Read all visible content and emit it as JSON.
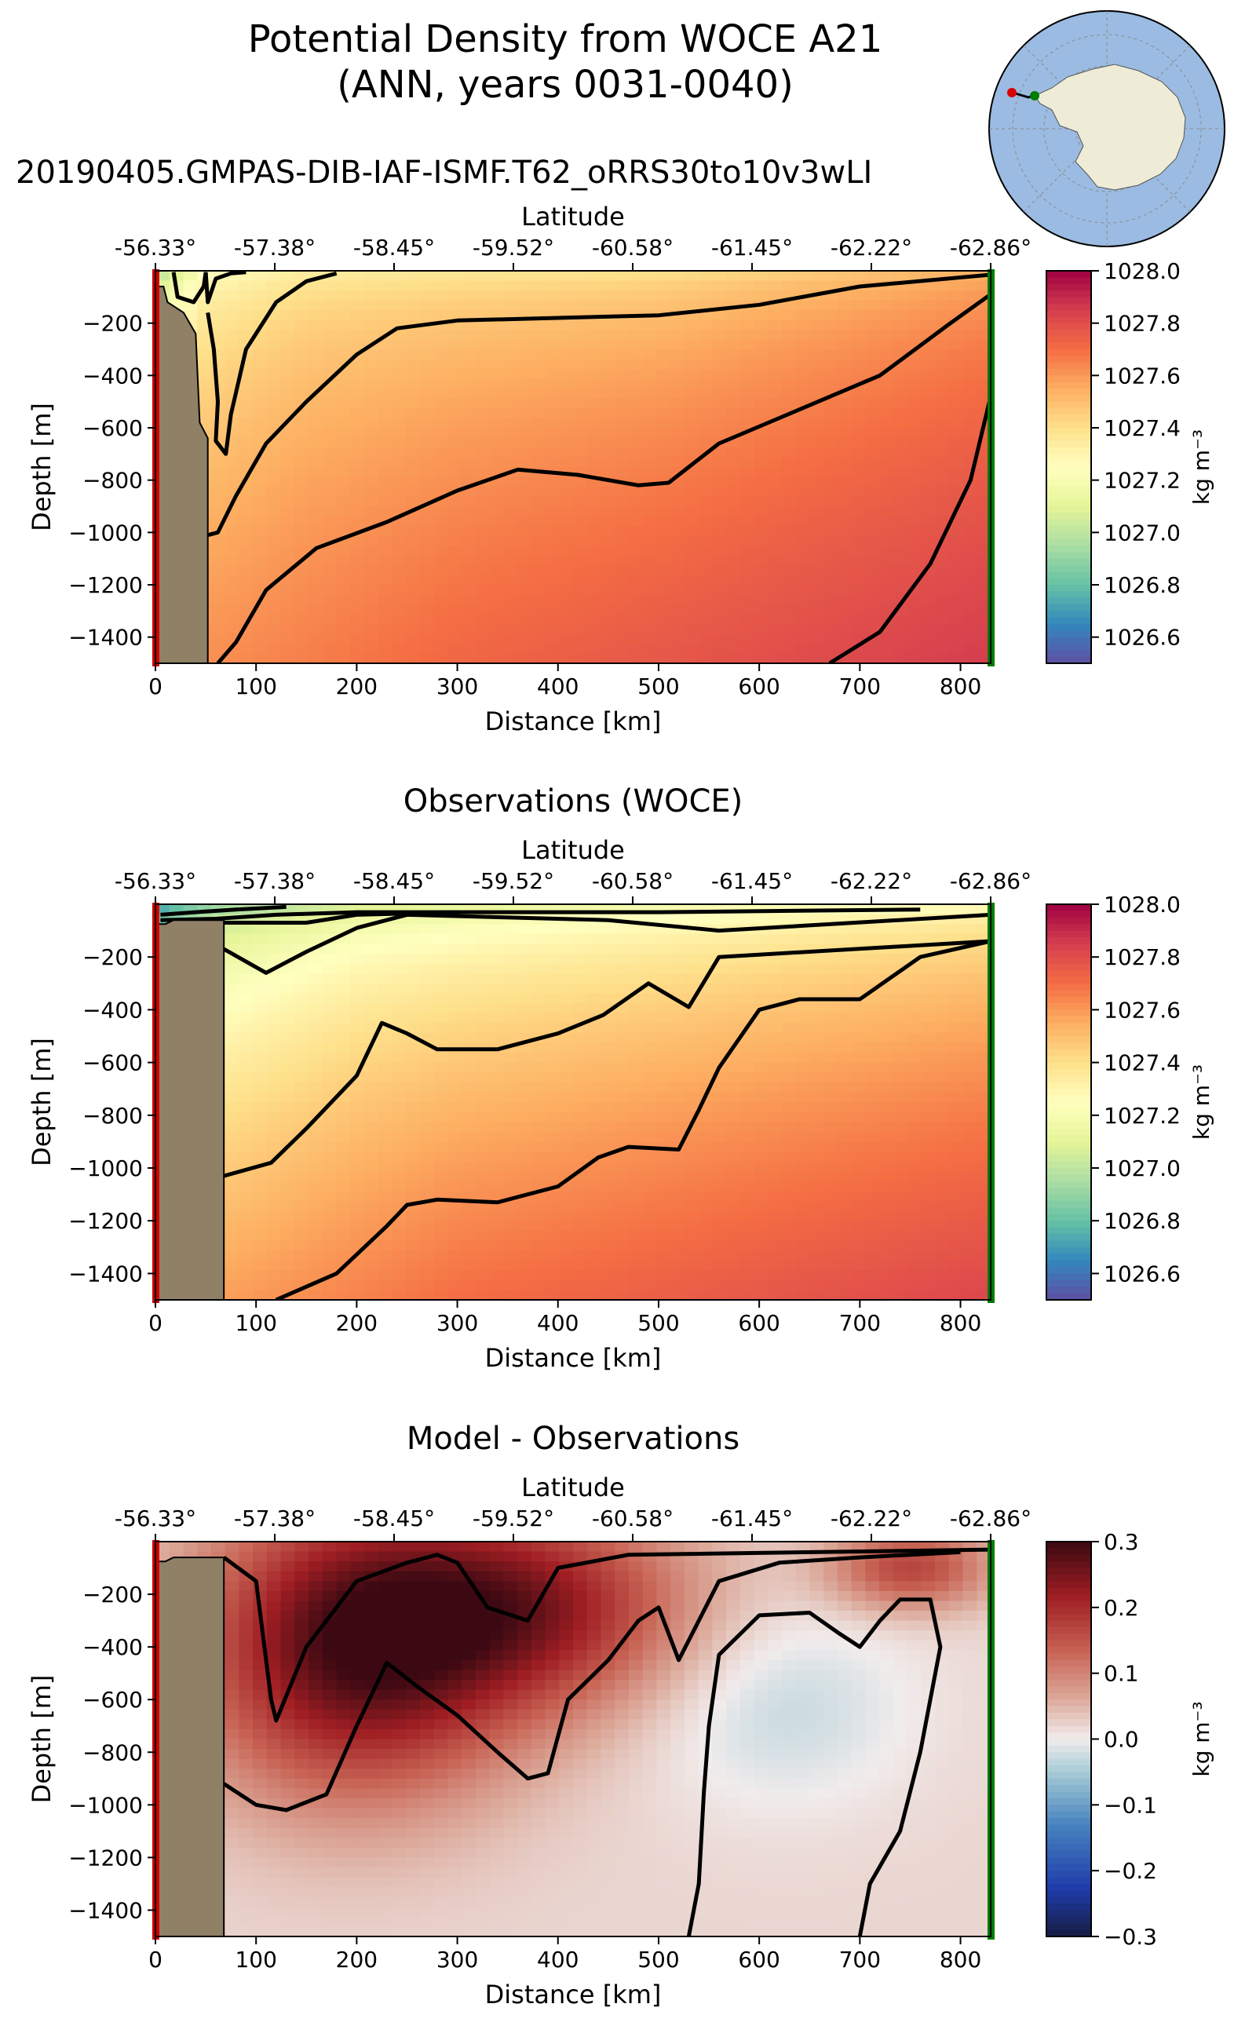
{
  "figure": {
    "title_line1": "Potential Density from WOCE A21",
    "title_line2": "(ANN, years 0031-0040)",
    "model_run": "20190405.GMPAS-DIB-IAF-ISMF.T62_oRRS30to10v3wLI"
  },
  "colors": {
    "land": "#8f8066",
    "start_marker": "#cc0000",
    "end_marker": "#007a00",
    "ocean": "#9bbbe2",
    "continent": "#eeebd6"
  },
  "chart_data": [
    {
      "type": "heatmap",
      "title": "",
      "xlabel": "Distance [km]",
      "ylabel": "Depth [m]",
      "top_xlabel": "Latitude",
      "xlim": [
        0,
        830
      ],
      "ylim": [
        -1500,
        0
      ],
      "xticks": [
        0,
        100,
        200,
        300,
        400,
        500,
        600,
        700,
        800
      ],
      "yticks": [
        -200,
        -400,
        -600,
        -800,
        -1000,
        -1200,
        -1400
      ],
      "lat_ticks": [
        "-56.33°",
        "-57.38°",
        "-58.45°",
        "-59.52°",
        "-60.58°",
        "-61.45°",
        "-62.22°",
        "-62.86°"
      ],
      "colorbar": {
        "label": "kg m⁻³",
        "min": 1026.5,
        "max": 1028.0,
        "ticks": [
          "1028.0",
          "1027.8",
          "1027.6",
          "1027.4",
          "1027.2",
          "1027.0",
          "1026.8",
          "1026.6"
        ]
      },
      "land_profile": [
        [
          0,
          -60
        ],
        [
          8,
          -60
        ],
        [
          12,
          -120
        ],
        [
          28,
          -160
        ],
        [
          40,
          -240
        ],
        [
          44,
          -580
        ],
        [
          52,
          -640
        ],
        [
          52,
          -1500
        ]
      ],
      "contours": [
        {
          "level": 1026.8,
          "points": [
            [
              18,
              -5
            ],
            [
              22,
              -100
            ],
            [
              38,
              -120
            ],
            [
              48,
              -60
            ],
            [
              50,
              -5
            ]
          ]
        },
        {
          "level": 1027.0,
          "points": [
            [
              50,
              -5
            ],
            [
              52,
              -120
            ],
            [
              60,
              -30
            ],
            [
              75,
              -10
            ],
            [
              90,
              -5
            ]
          ]
        },
        {
          "level": 1027.2,
          "points": [
            [
              52,
              -160
            ],
            [
              58,
              -300
            ],
            [
              62,
              -500
            ],
            [
              60,
              -650
            ],
            [
              70,
              -700
            ],
            [
              75,
              -550
            ],
            [
              90,
              -300
            ],
            [
              120,
              -120
            ],
            [
              150,
              -40
            ],
            [
              180,
              -10
            ]
          ]
        },
        {
          "level": 1027.4,
          "points": [
            [
              52,
              -1010
            ],
            [
              62,
              -1000
            ],
            [
              80,
              -860
            ],
            [
              110,
              -660
            ],
            [
              150,
              -500
            ],
            [
              200,
              -320
            ],
            [
              240,
              -220
            ],
            [
              300,
              -190
            ],
            [
              400,
              -180
            ],
            [
              500,
              -170
            ],
            [
              600,
              -130
            ],
            [
              700,
              -60
            ],
            [
              830,
              -15
            ]
          ]
        },
        {
          "level": 1027.6,
          "points": [
            [
              62,
              -1500
            ],
            [
              80,
              -1420
            ],
            [
              110,
              -1220
            ],
            [
              160,
              -1060
            ],
            [
              230,
              -960
            ],
            [
              300,
              -840
            ],
            [
              360,
              -760
            ],
            [
              420,
              -780
            ],
            [
              480,
              -820
            ],
            [
              510,
              -810
            ],
            [
              560,
              -660
            ],
            [
              640,
              -530
            ],
            [
              720,
              -400
            ],
            [
              790,
              -200
            ],
            [
              830,
              -90
            ]
          ]
        },
        {
          "level": 1027.8,
          "points": [
            [
              670,
              -1500
            ],
            [
              720,
              -1380
            ],
            [
              770,
              -1120
            ],
            [
              810,
              -800
            ],
            [
              830,
              -480
            ]
          ]
        }
      ],
      "field": {
        "surface": [
          [
            0,
            1026.9
          ],
          [
            50,
            1027.2
          ],
          [
            150,
            1027.3
          ],
          [
            500,
            1027.35
          ],
          [
            830,
            1027.5
          ]
        ],
        "bottom": [
          [
            0,
            1027.6
          ],
          [
            300,
            1027.72
          ],
          [
            830,
            1027.85
          ]
        ]
      }
    },
    {
      "type": "heatmap",
      "title": "Observations (WOCE)",
      "xlabel": "Distance [km]",
      "ylabel": "Depth [m]",
      "top_xlabel": "Latitude",
      "xlim": [
        0,
        830
      ],
      "ylim": [
        -1500,
        0
      ],
      "xticks": [
        0,
        100,
        200,
        300,
        400,
        500,
        600,
        700,
        800
      ],
      "yticks": [
        -200,
        -400,
        -600,
        -800,
        -1000,
        -1200,
        -1400
      ],
      "lat_ticks": [
        "-56.33°",
        "-57.38°",
        "-58.45°",
        "-59.52°",
        "-60.58°",
        "-61.45°",
        "-62.22°",
        "-62.86°"
      ],
      "colorbar": {
        "label": "kg m⁻³",
        "min": 1026.5,
        "max": 1028.0,
        "ticks": [
          "1028.0",
          "1027.8",
          "1027.6",
          "1027.4",
          "1027.2",
          "1027.0",
          "1026.8",
          "1026.6"
        ]
      },
      "land_profile": [
        [
          0,
          -75
        ],
        [
          10,
          -75
        ],
        [
          18,
          -60
        ],
        [
          68,
          -60
        ],
        [
          68,
          -1500
        ]
      ],
      "contours": [
        {
          "level": 1026.6,
          "points": [
            [
              5,
              -40
            ],
            [
              40,
              -30
            ],
            [
              80,
              -20
            ],
            [
              130,
              -10
            ]
          ]
        },
        {
          "level": 1026.8,
          "points": [
            [
              5,
              -60
            ],
            [
              60,
              -55
            ],
            [
              120,
              -40
            ],
            [
              200,
              -30
            ],
            [
              300,
              -30
            ]
          ]
        },
        {
          "level": 1027.0,
          "points": [
            [
              68,
              -70
            ],
            [
              150,
              -70
            ],
            [
              200,
              -40
            ],
            [
              300,
              -30
            ],
            [
              500,
              -30
            ],
            [
              760,
              -20
            ]
          ]
        },
        {
          "level": 1027.2,
          "points": [
            [
              68,
              -170
            ],
            [
              110,
              -260
            ],
            [
              150,
              -180
            ],
            [
              200,
              -90
            ],
            [
              250,
              -40
            ],
            [
              450,
              -60
            ],
            [
              560,
              -100
            ],
            [
              830,
              -40
            ]
          ]
        },
        {
          "level": 1027.4,
          "points": [
            [
              68,
              -1030
            ],
            [
              115,
              -980
            ],
            [
              150,
              -850
            ],
            [
              200,
              -650
            ],
            [
              225,
              -450
            ],
            [
              250,
              -490
            ],
            [
              280,
              -550
            ],
            [
              340,
              -550
            ],
            [
              400,
              -490
            ],
            [
              445,
              -420
            ],
            [
              490,
              -300
            ],
            [
              530,
              -390
            ],
            [
              560,
              -200
            ],
            [
              830,
              -140
            ]
          ]
        },
        {
          "level": 1027.6,
          "points": [
            [
              120,
              -1500
            ],
            [
              180,
              -1400
            ],
            [
              230,
              -1220
            ],
            [
              250,
              -1140
            ],
            [
              280,
              -1120
            ],
            [
              340,
              -1130
            ],
            [
              400,
              -1070
            ],
            [
              440,
              -960
            ],
            [
              470,
              -920
            ],
            [
              520,
              -930
            ],
            [
              540,
              -780
            ],
            [
              560,
              -620
            ],
            [
              600,
              -400
            ],
            [
              640,
              -360
            ],
            [
              700,
              -360
            ],
            [
              760,
              -200
            ],
            [
              830,
              -140
            ]
          ]
        }
      ],
      "field": {
        "surface": [
          [
            0,
            1026.6
          ],
          [
            68,
            1026.85
          ],
          [
            200,
            1027.0
          ],
          [
            500,
            1027.1
          ],
          [
            830,
            1027.2
          ]
        ],
        "bottom": [
          [
            0,
            1027.55
          ],
          [
            300,
            1027.7
          ],
          [
            830,
            1027.82
          ]
        ]
      }
    },
    {
      "type": "heatmap",
      "title": "Model - Observations",
      "xlabel": "Distance [km]",
      "ylabel": "Depth [m]",
      "top_xlabel": "Latitude",
      "xlim": [
        0,
        830
      ],
      "ylim": [
        -1500,
        0
      ],
      "xticks": [
        0,
        100,
        200,
        300,
        400,
        500,
        600,
        700,
        800
      ],
      "yticks": [
        -200,
        -400,
        -600,
        -800,
        -1000,
        -1200,
        -1400
      ],
      "lat_ticks": [
        "-56.33°",
        "-57.38°",
        "-58.45°",
        "-59.52°",
        "-60.58°",
        "-61.45°",
        "-62.22°",
        "-62.86°"
      ],
      "colorbar": {
        "label": "kg m⁻³",
        "min": -0.3,
        "max": 0.3,
        "ticks": [
          "0.3",
          "0.2",
          "0.1",
          "0.0",
          "−0.1",
          "−0.2",
          "−0.3"
        ]
      },
      "land_profile": [
        [
          0,
          -75
        ],
        [
          10,
          -75
        ],
        [
          18,
          -60
        ],
        [
          68,
          -60
        ],
        [
          68,
          -1500
        ]
      ],
      "contours": [
        {
          "level": 0.2,
          "points": [
            [
              68,
              -60
            ],
            [
              100,
              -150
            ],
            [
              115,
              -600
            ],
            [
              120,
              -680
            ],
            [
              150,
              -400
            ],
            [
              200,
              -150
            ],
            [
              250,
              -80
            ],
            [
              280,
              -50
            ],
            [
              300,
              -80
            ],
            [
              330,
              -250
            ],
            [
              370,
              -300
            ],
            [
              400,
              -100
            ],
            [
              470,
              -50
            ],
            [
              830,
              -30
            ]
          ]
        },
        {
          "level": 0.1,
          "points": [
            [
              68,
              -920
            ],
            [
              100,
              -1000
            ],
            [
              130,
              -1020
            ],
            [
              170,
              -960
            ],
            [
              200,
              -700
            ],
            [
              230,
              -460
            ],
            [
              260,
              -550
            ],
            [
              300,
              -660
            ],
            [
              340,
              -800
            ],
            [
              370,
              -900
            ],
            [
              390,
              -880
            ],
            [
              410,
              -600
            ],
            [
              450,
              -450
            ],
            [
              480,
              -300
            ],
            [
              500,
              -250
            ],
            [
              520,
              -450
            ],
            [
              560,
              -150
            ],
            [
              620,
              -80
            ],
            [
              700,
              -60
            ],
            [
              800,
              -40
            ]
          ]
        },
        {
          "level": 0.0,
          "points": [
            [
              530,
              -1500
            ],
            [
              540,
              -1300
            ],
            [
              545,
              -950
            ],
            [
              550,
              -700
            ],
            [
              560,
              -430
            ],
            [
              600,
              -280
            ],
            [
              650,
              -270
            ],
            [
              680,
              -350
            ],
            [
              700,
              -400
            ],
            [
              720,
              -300
            ],
            [
              740,
              -220
            ],
            [
              770,
              -220
            ],
            [
              780,
              -400
            ],
            [
              760,
              -800
            ],
            [
              740,
              -1100
            ],
            [
              710,
              -1300
            ],
            [
              700,
              -1500
            ]
          ]
        }
      ],
      "field": {
        "blobs": [
          {
            "x": 200,
            "y": -400,
            "rx": 160,
            "ry": 560,
            "v": 0.26
          },
          {
            "x": 380,
            "y": -250,
            "rx": 160,
            "ry": 380,
            "v": 0.18
          },
          {
            "x": 620,
            "y": -620,
            "rx": 130,
            "ry": 380,
            "v": -0.05
          },
          {
            "x": 750,
            "y": -100,
            "rx": 80,
            "ry": 160,
            "v": 0.15
          }
        ]
      }
    }
  ]
}
